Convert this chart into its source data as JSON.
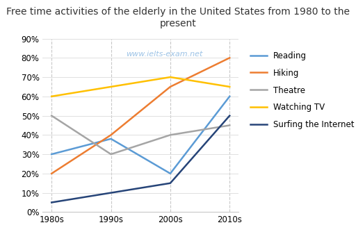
{
  "title": "Free time activities of the elderly in the United States from 1980 to the present",
  "watermark": "www.ielts-exam.net",
  "categories": [
    "1980s",
    "1990s",
    "2000s",
    "2010s"
  ],
  "series": [
    {
      "name": "Reading",
      "color": "#5b9bd5",
      "values": [
        30,
        38,
        20,
        60
      ]
    },
    {
      "name": "Hiking",
      "color": "#ed7d31",
      "values": [
        20,
        40,
        65,
        80
      ]
    },
    {
      "name": "Theatre",
      "color": "#a5a5a5",
      "values": [
        50,
        30,
        40,
        45
      ]
    },
    {
      "name": "Watching TV",
      "color": "#ffc000",
      "values": [
        60,
        65,
        70,
        65
      ]
    },
    {
      "name": "Surfing the Internet",
      "color": "#264478",
      "values": [
        5,
        10,
        15,
        50
      ]
    }
  ],
  "ylim": [
    0,
    90
  ],
  "yticks": [
    0,
    10,
    20,
    30,
    40,
    50,
    60,
    70,
    80,
    90
  ],
  "background_color": "#ffffff",
  "title_fontsize": 10,
  "legend_fontsize": 8.5,
  "tick_fontsize": 8.5,
  "watermark_color": "#9dc3e6",
  "watermark_fontsize": 8
}
